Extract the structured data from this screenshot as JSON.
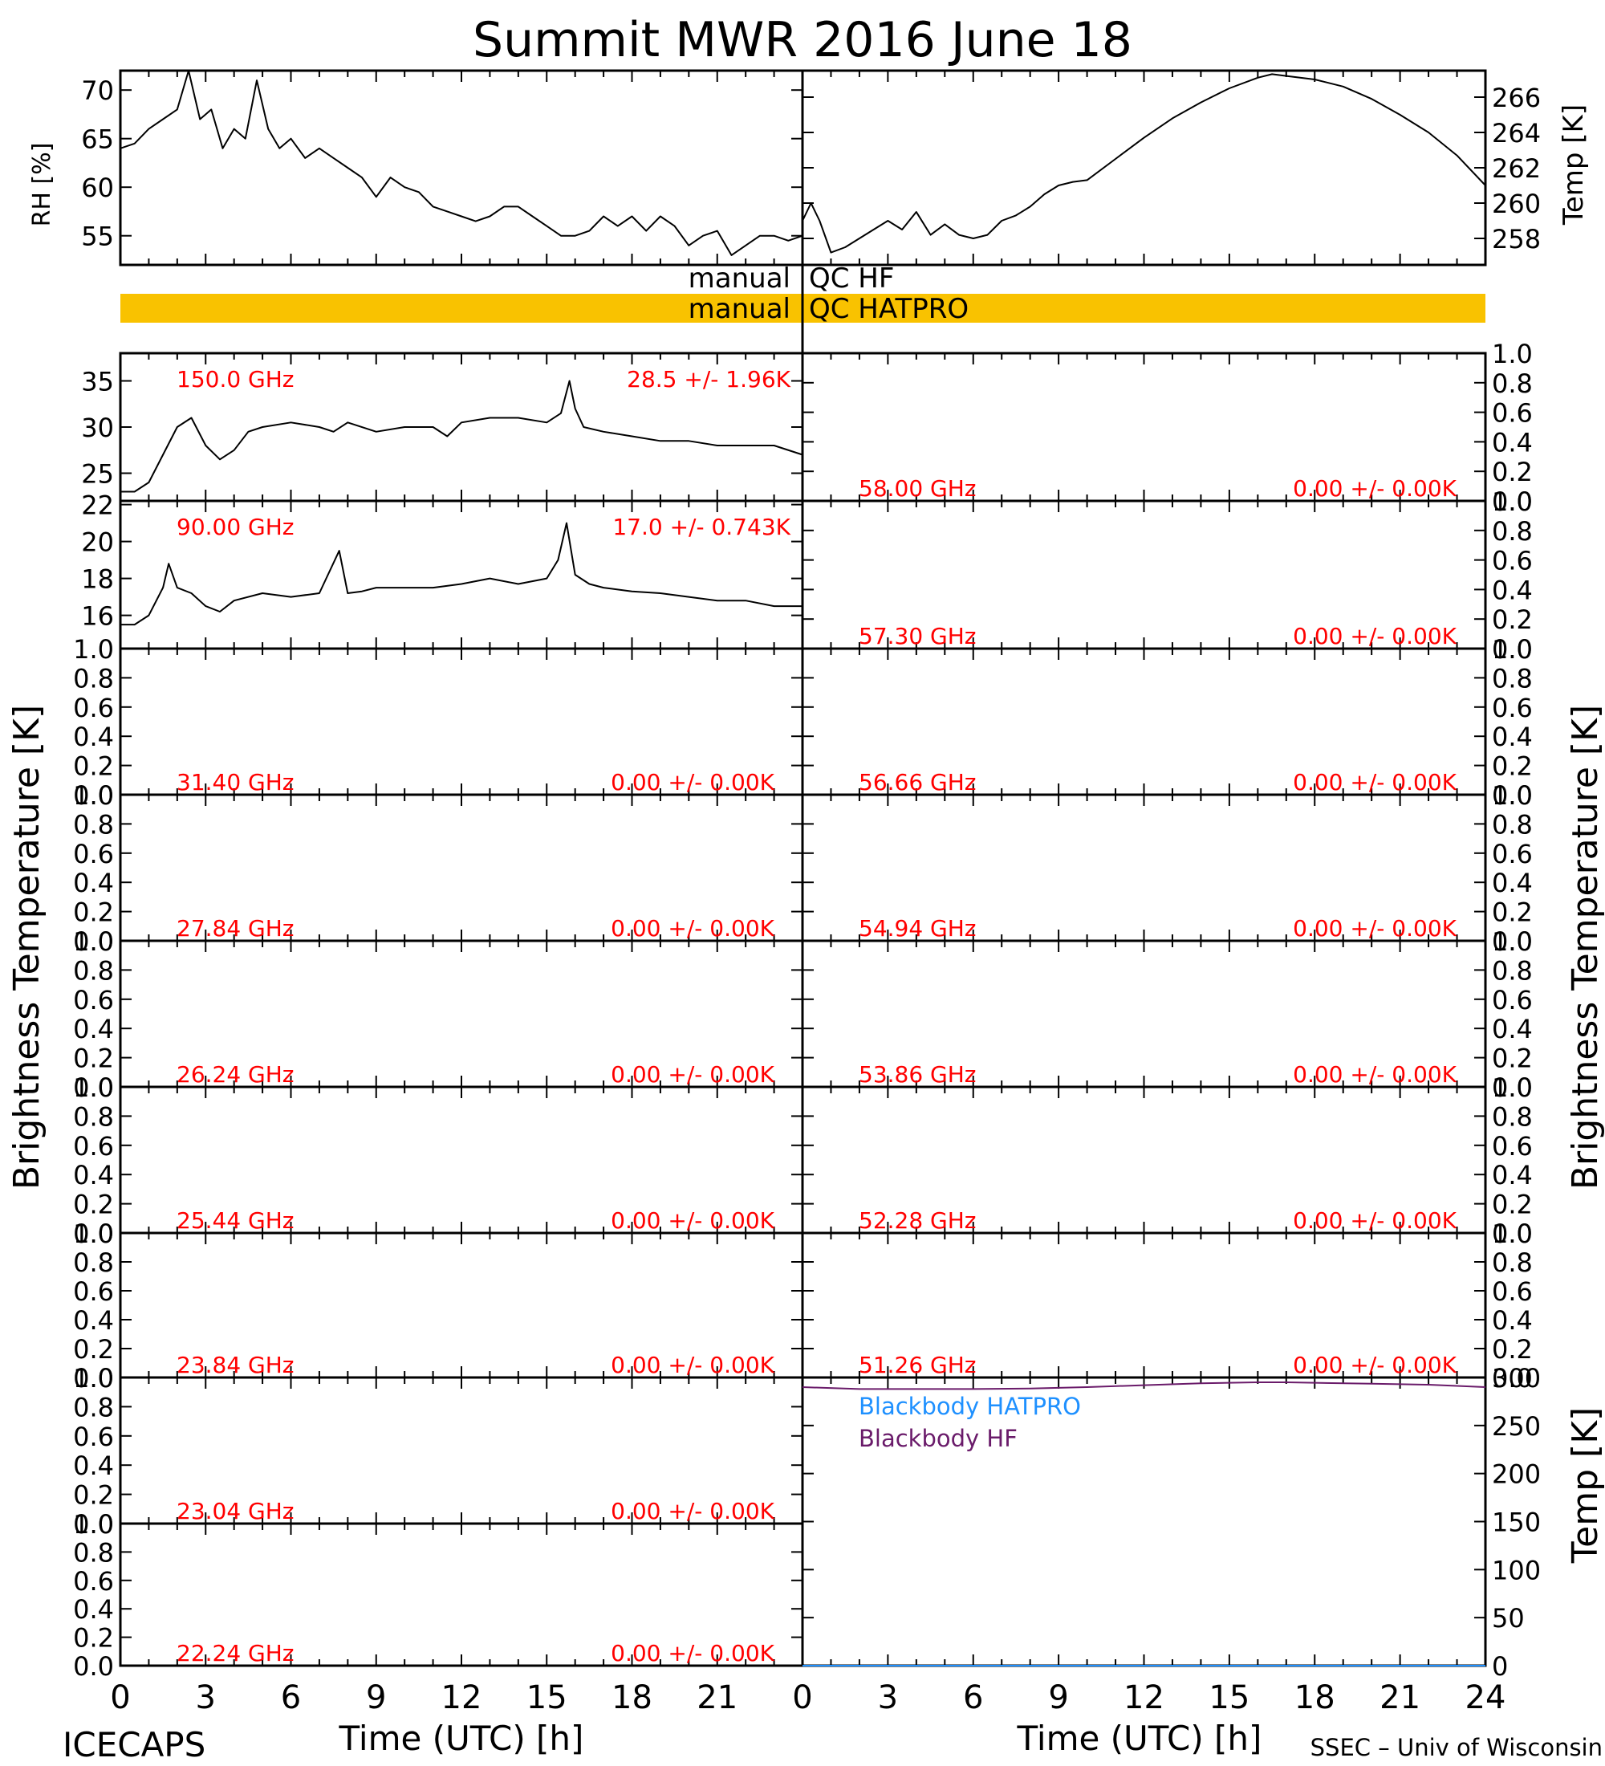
{
  "title": "Summit MWR 2016 June 18",
  "footer": {
    "left": "ICECAPS",
    "right": "SSEC – Univ of Wisconsin"
  },
  "colors": {
    "axis": "#000000",
    "trace": "#000000",
    "label": "#ff0000",
    "qc_bar": "#f9c200",
    "bb_hatpro": "#1e90ff",
    "bb_hf": "#6a1b6a"
  },
  "qc": {
    "row1_left": "manual",
    "row1_right": "QC  HF",
    "row2_left": "manual",
    "row2_right": "QC  HATPRO"
  },
  "axis_titles": {
    "rh": "RH  [%]",
    "temp_top": "Temp  [K]",
    "tb_left": "Brightness  Temperature  [K]",
    "tb_right": "Brightness  Temperature  [K]",
    "temp_bottom": "Temp  [K]",
    "x_left": "Time  (UTC)  [h]",
    "x_right": "Time  (UTC)  [h]"
  },
  "chart_data": [
    {
      "type": "line",
      "id": "rh",
      "ylabel": "RH  [%]",
      "ylim": [
        52,
        72
      ],
      "yticks": [
        55,
        60,
        65,
        70
      ],
      "xlim": [
        0,
        24
      ],
      "x": [
        0,
        0.5,
        1,
        1.5,
        2,
        2.4,
        2.8,
        3.2,
        3.6,
        4.0,
        4.4,
        4.8,
        5.2,
        5.6,
        6,
        6.5,
        7,
        7.5,
        8,
        8.5,
        9,
        9.5,
        10,
        10.5,
        11,
        11.5,
        12,
        12.5,
        13,
        13.5,
        14,
        14.5,
        15,
        15.5,
        16,
        16.5,
        17,
        17.5,
        18,
        18.5,
        19,
        19.5,
        20,
        20.5,
        21,
        21.5,
        22,
        22.5,
        23,
        23.5,
        24
      ],
      "y": [
        64,
        64.5,
        66,
        67,
        68,
        72,
        67,
        68,
        64,
        66,
        65,
        71,
        66,
        64,
        65,
        63,
        64,
        63,
        62,
        61,
        59,
        61,
        60,
        59.5,
        58,
        57.5,
        57,
        56.5,
        57,
        58,
        58,
        57,
        56,
        55,
        55,
        55.5,
        57,
        56,
        57,
        55.5,
        57,
        56,
        54,
        55,
        55.5,
        53,
        54,
        55,
        55,
        54.5,
        55
      ]
    },
    {
      "type": "line",
      "id": "temp_surface",
      "ylabel": "Temp  [K]",
      "ylim": [
        256.5,
        267.5
      ],
      "yticks": [
        258,
        260,
        262,
        264,
        266
      ],
      "xlim": [
        0,
        24
      ],
      "x": [
        0,
        0.3,
        0.6,
        1,
        1.5,
        2,
        2.5,
        3,
        3.5,
        4,
        4.5,
        5,
        5.5,
        6,
        6.5,
        7,
        7.5,
        8,
        8.5,
        9,
        9.5,
        10,
        11,
        12,
        13,
        14,
        15,
        16,
        16.5,
        17,
        18,
        19,
        20,
        21,
        22,
        23,
        24
      ],
      "y": [
        259,
        260,
        259,
        257.2,
        257.5,
        258,
        258.5,
        259,
        258.5,
        259.5,
        258.2,
        258.8,
        258.2,
        258,
        258.2,
        259,
        259.3,
        259.8,
        260.5,
        261,
        261.2,
        261.3,
        262.5,
        263.7,
        264.8,
        265.7,
        266.5,
        267.1,
        267.3,
        267.2,
        267.0,
        266.6,
        265.9,
        265.0,
        264.0,
        262.7,
        261.0
      ]
    },
    {
      "type": "line",
      "id": "tb_150",
      "freq_label": "150.0 GHz",
      "stats_label": "28.5 +/-  1.96K",
      "ylim": [
        22,
        38
      ],
      "yticks": [
        25,
        30,
        35
      ],
      "xlim": [
        0,
        24
      ],
      "x": [
        0,
        0.5,
        1,
        1.5,
        2,
        2.5,
        3,
        3.5,
        4,
        4.5,
        5,
        6,
        7,
        7.5,
        8,
        9,
        10,
        11,
        11.5,
        12,
        13,
        14,
        15,
        15.5,
        15.8,
        16,
        16.3,
        17,
        18,
        19,
        20,
        21,
        22,
        23,
        24
      ],
      "y": [
        23,
        23,
        24,
        27,
        30,
        31,
        28,
        26.5,
        27.5,
        29.5,
        30,
        30.5,
        30,
        29.5,
        30.5,
        29.5,
        30,
        30,
        29,
        30.5,
        31,
        31,
        30.5,
        31.5,
        35,
        32,
        30,
        29.5,
        29,
        28.5,
        28.5,
        28,
        28,
        28,
        27
      ]
    },
    {
      "type": "line",
      "id": "tb_90",
      "freq_label": "90.00 GHz",
      "stats_label": "17.0 +/- 0.743K",
      "ylim": [
        14.2,
        22.2
      ],
      "yticks": [
        16,
        18,
        20,
        22
      ],
      "xlim": [
        0,
        24
      ],
      "x": [
        0,
        0.5,
        1,
        1.5,
        1.7,
        2,
        2.5,
        3,
        3.5,
        4,
        5,
        6,
        7,
        7.7,
        8,
        8.5,
        9,
        10,
        11,
        12,
        13,
        14,
        15,
        15.4,
        15.7,
        16,
        16.5,
        17,
        18,
        19,
        20,
        21,
        22,
        23,
        24
      ],
      "y": [
        15.5,
        15.5,
        16,
        17.5,
        18.8,
        17.5,
        17.2,
        16.5,
        16.2,
        16.8,
        17.2,
        17,
        17.2,
        19.5,
        17.2,
        17.3,
        17.5,
        17.5,
        17.5,
        17.7,
        18,
        17.7,
        18,
        19,
        21,
        18.2,
        17.7,
        17.5,
        17.3,
        17.2,
        17,
        16.8,
        16.8,
        16.5,
        16.5
      ]
    },
    {
      "type": "line",
      "id": "tb_58_00",
      "freq_label": "58.00 GHz",
      "stats_label": "0.00 +/-  0.00K",
      "ylim": [
        0,
        1
      ],
      "values": []
    },
    {
      "type": "line",
      "id": "tb_57_30",
      "freq_label": "57.30 GHz",
      "stats_label": "0.00 +/-  0.00K",
      "ylim": [
        0,
        1
      ],
      "values": []
    },
    {
      "type": "line",
      "id": "tb_31_40",
      "freq_label": "31.40 GHz",
      "stats_label": "0.00 +/-  0.00K",
      "ylim": [
        0,
        1
      ],
      "values": []
    },
    {
      "type": "line",
      "id": "tb_56_66",
      "freq_label": "56.66 GHz",
      "stats_label": "0.00 +/-  0.00K",
      "ylim": [
        0,
        1
      ],
      "values": []
    },
    {
      "type": "line",
      "id": "tb_27_84",
      "freq_label": "27.84 GHz",
      "stats_label": "0.00 +/-  0.00K",
      "ylim": [
        0,
        1
      ],
      "values": []
    },
    {
      "type": "line",
      "id": "tb_54_94",
      "freq_label": "54.94 GHz",
      "stats_label": "0.00 +/-  0.00K",
      "ylim": [
        0,
        1
      ],
      "values": []
    },
    {
      "type": "line",
      "id": "tb_26_24",
      "freq_label": "26.24 GHz",
      "stats_label": "0.00 +/-  0.00K",
      "ylim": [
        0,
        1
      ],
      "values": []
    },
    {
      "type": "line",
      "id": "tb_53_86",
      "freq_label": "53.86 GHz",
      "stats_label": "0.00 +/-  0.00K",
      "ylim": [
        0,
        1
      ],
      "values": []
    },
    {
      "type": "line",
      "id": "tb_25_44",
      "freq_label": "25.44 GHz",
      "stats_label": "0.00 +/-  0.00K",
      "ylim": [
        0,
        1
      ],
      "values": []
    },
    {
      "type": "line",
      "id": "tb_52_28",
      "freq_label": "52.28 GHz",
      "stats_label": "0.00 +/-  0.00K",
      "ylim": [
        0,
        1
      ],
      "values": []
    },
    {
      "type": "line",
      "id": "tb_23_84",
      "freq_label": "23.84 GHz",
      "stats_label": "0.00 +/-  0.00K",
      "ylim": [
        0,
        1
      ],
      "values": []
    },
    {
      "type": "line",
      "id": "tb_51_26",
      "freq_label": "51.26 GHz",
      "stats_label": "0.00 +/-  0.00K",
      "ylim": [
        0,
        1
      ],
      "values": []
    },
    {
      "type": "line",
      "id": "tb_23_04",
      "freq_label": "23.04 GHz",
      "stats_label": "0.00 +/-  0.00K",
      "ylim": [
        0,
        1
      ],
      "values": []
    },
    {
      "type": "line",
      "id": "tb_22_24",
      "freq_label": "22.24 GHz",
      "stats_label": "0.00 +/-  0.00K",
      "ylim": [
        0,
        1
      ],
      "values": []
    },
    {
      "type": "line",
      "id": "blackbody",
      "ylabel": "Temp  [K]",
      "ylim": [
        0,
        300
      ],
      "yticks": [
        0,
        50,
        100,
        150,
        200,
        250,
        300
      ],
      "xlim": [
        0,
        24
      ],
      "series": [
        {
          "name": "Blackbody HATPRO",
          "color": "#1e90ff",
          "x": [
            0,
            24
          ],
          "y": [
            0,
            0
          ]
        },
        {
          "name": "Blackbody HF",
          "color": "#6a1b6a",
          "x": [
            0,
            2,
            4,
            6,
            8,
            10,
            12,
            14,
            16,
            17,
            18,
            20,
            22,
            24
          ],
          "y": [
            290,
            288,
            288,
            288,
            288.5,
            290,
            292,
            294,
            295,
            295,
            294.5,
            293.5,
            292.5,
            290
          ]
        }
      ]
    }
  ],
  "x_axis": {
    "ticks": [
      0,
      3,
      6,
      9,
      12,
      15,
      18,
      21,
      24
    ],
    "left_tick_labels": [
      "0",
      "3",
      "6",
      "9",
      "12",
      "15",
      "18",
      "21"
    ],
    "right_tick_labels": [
      "0",
      "3",
      "6",
      "9",
      "12",
      "15",
      "18",
      "21",
      "24"
    ]
  },
  "tb_tick_labels": [
    "0.0",
    "0.2",
    "0.4",
    "0.6",
    "0.8",
    "1.0"
  ]
}
